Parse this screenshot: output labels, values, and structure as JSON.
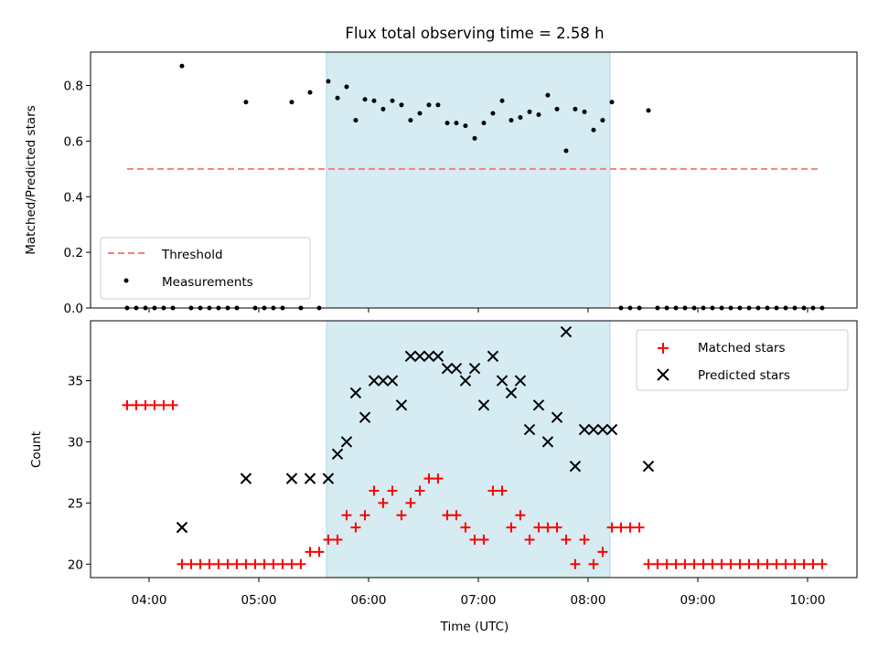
{
  "figure_title": "Flux total observing time = 2.58 h",
  "colors": {
    "threshold": "#f08080",
    "measurement": "#000000",
    "matched": "#ff0000",
    "predicted": "#000000",
    "span_fill": "#add8e6"
  },
  "chart_data": [
    {
      "type": "scatter",
      "title": "Flux total observing time = 2.58 h",
      "xlabel": "",
      "ylabel": "Matched/Predicted stars",
      "xlim": [
        3.467,
        10.45
      ],
      "ylim": [
        0.0,
        0.92
      ],
      "yticks": [
        0.0,
        0.2,
        0.4,
        0.6,
        0.8
      ],
      "ytick_labels": [
        "0.0",
        "0.2",
        "0.4",
        "0.6",
        "0.8"
      ],
      "xticks": [
        4,
        5,
        6,
        7,
        8,
        9,
        10
      ],
      "grid": false,
      "legend_position": "lower-left",
      "legend": [
        "Threshold",
        "Measurements"
      ],
      "shaded_span": [
        5.617,
        8.2
      ],
      "threshold": {
        "name": "Threshold",
        "y": 0.5,
        "x_range": [
          3.8,
          10.1
        ]
      },
      "measurements": {
        "name": "Measurements",
        "x": [
          3.8,
          3.883,
          3.967,
          4.05,
          4.133,
          4.217,
          4.3,
          4.383,
          4.467,
          4.55,
          4.633,
          4.717,
          4.8,
          4.883,
          4.967,
          5.05,
          5.133,
          5.217,
          5.3,
          5.383,
          5.467,
          5.55,
          5.633,
          5.717,
          5.8,
          5.883,
          5.967,
          6.05,
          6.133,
          6.217,
          6.3,
          6.383,
          6.467,
          6.55,
          6.633,
          6.717,
          6.8,
          6.883,
          6.967,
          7.05,
          7.133,
          7.217,
          7.3,
          7.383,
          7.467,
          7.55,
          7.633,
          7.717,
          7.8,
          7.883,
          7.967,
          8.05,
          8.133,
          8.217,
          8.3,
          8.383,
          8.467,
          8.55,
          8.633,
          8.717,
          8.8,
          8.883,
          8.967,
          9.05,
          9.133,
          9.217,
          9.3,
          9.383,
          9.467,
          9.55,
          9.633,
          9.717,
          9.8,
          9.883,
          9.967,
          10.05,
          10.133
        ],
        "y": [
          0,
          0,
          0,
          0,
          0,
          0,
          0.87,
          0,
          0,
          0,
          0,
          0,
          0,
          0.74,
          0,
          0,
          0,
          0,
          0.74,
          0,
          0.775,
          0,
          0.815,
          0.755,
          0.795,
          0.675,
          0.75,
          0.745,
          0.715,
          0.745,
          0.73,
          0.675,
          0.7,
          0.73,
          0.73,
          0.665,
          0.665,
          0.655,
          0.61,
          0.665,
          0.7,
          0.745,
          0.675,
          0.685,
          0.705,
          0.695,
          0.765,
          0.715,
          0.565,
          0.715,
          0.705,
          0.64,
          0.675,
          0.74,
          0,
          0,
          0,
          0.71,
          0,
          0,
          0,
          0,
          0,
          0,
          0,
          0,
          0,
          0,
          0,
          0,
          0,
          0,
          0,
          0,
          0,
          0,
          0
        ]
      }
    },
    {
      "type": "scatter",
      "title": "",
      "xlabel": "Time (UTC)",
      "ylabel": "Count",
      "xlim": [
        3.467,
        10.45
      ],
      "ylim": [
        18.9,
        39.9
      ],
      "yticks": [
        20,
        25,
        30,
        35
      ],
      "ytick_labels": [
        "20",
        "25",
        "30",
        "35"
      ],
      "xticks": [
        4,
        5,
        6,
        7,
        8,
        9,
        10
      ],
      "xtick_labels": [
        "04:00",
        "05:00",
        "06:00",
        "07:00",
        "08:00",
        "09:00",
        "10:00"
      ],
      "grid": false,
      "legend_position": "top-right",
      "legend": [
        "Matched stars",
        "Predicted stars"
      ],
      "shaded_span": [
        5.617,
        8.2
      ],
      "matched": {
        "name": "Matched stars",
        "x": [
          3.8,
          3.883,
          3.967,
          4.05,
          4.133,
          4.217,
          4.3,
          4.383,
          4.467,
          4.55,
          4.633,
          4.717,
          4.8,
          4.883,
          4.967,
          5.05,
          5.133,
          5.217,
          5.3,
          5.383,
          5.467,
          5.55,
          5.633,
          5.717,
          5.8,
          5.883,
          5.967,
          6.05,
          6.133,
          6.217,
          6.3,
          6.383,
          6.467,
          6.55,
          6.633,
          6.717,
          6.8,
          6.883,
          6.967,
          7.05,
          7.133,
          7.217,
          7.3,
          7.383,
          7.467,
          7.55,
          7.633,
          7.717,
          7.8,
          7.883,
          7.967,
          8.05,
          8.133,
          8.217,
          8.3,
          8.383,
          8.467,
          8.55,
          8.633,
          8.717,
          8.8,
          8.883,
          8.967,
          9.05,
          9.133,
          9.217,
          9.3,
          9.383,
          9.467,
          9.55,
          9.633,
          9.717,
          9.8,
          9.883,
          9.967,
          10.05,
          10.133
        ],
        "y": [
          33,
          33,
          33,
          33,
          33,
          33,
          20,
          20,
          20,
          20,
          20,
          20,
          20,
          20,
          20,
          20,
          20,
          20,
          20,
          20,
          21,
          21,
          22,
          22,
          24,
          23,
          24,
          26,
          25,
          26,
          24,
          25,
          26,
          27,
          27,
          24,
          24,
          23,
          22,
          22,
          26,
          26,
          23,
          24,
          22,
          23,
          23,
          23,
          22,
          20,
          22,
          20,
          21,
          23,
          23,
          23,
          23,
          20,
          20,
          20,
          20,
          20,
          20,
          20,
          20,
          20,
          20,
          20,
          20,
          20,
          20,
          20,
          20,
          20,
          20,
          20,
          20
        ]
      },
      "predicted": {
        "name": "Predicted stars",
        "x": [
          4.3,
          4.883,
          5.3,
          5.467,
          5.633,
          5.717,
          5.8,
          5.883,
          5.967,
          6.05,
          6.133,
          6.217,
          6.3,
          6.383,
          6.467,
          6.55,
          6.633,
          6.717,
          6.8,
          6.883,
          6.967,
          7.05,
          7.133,
          7.217,
          7.3,
          7.383,
          7.467,
          7.55,
          7.633,
          7.717,
          7.8,
          7.883,
          7.967,
          8.05,
          8.133,
          8.217,
          8.55
        ],
        "y": [
          23,
          27,
          27,
          27,
          27,
          29,
          30,
          34,
          32,
          35,
          35,
          35,
          33,
          37,
          37,
          37,
          37,
          36,
          36,
          35,
          36,
          33,
          37,
          35,
          34,
          35,
          31,
          33,
          30,
          32,
          39,
          28,
          31,
          31,
          31,
          31,
          28
        ]
      }
    }
  ]
}
